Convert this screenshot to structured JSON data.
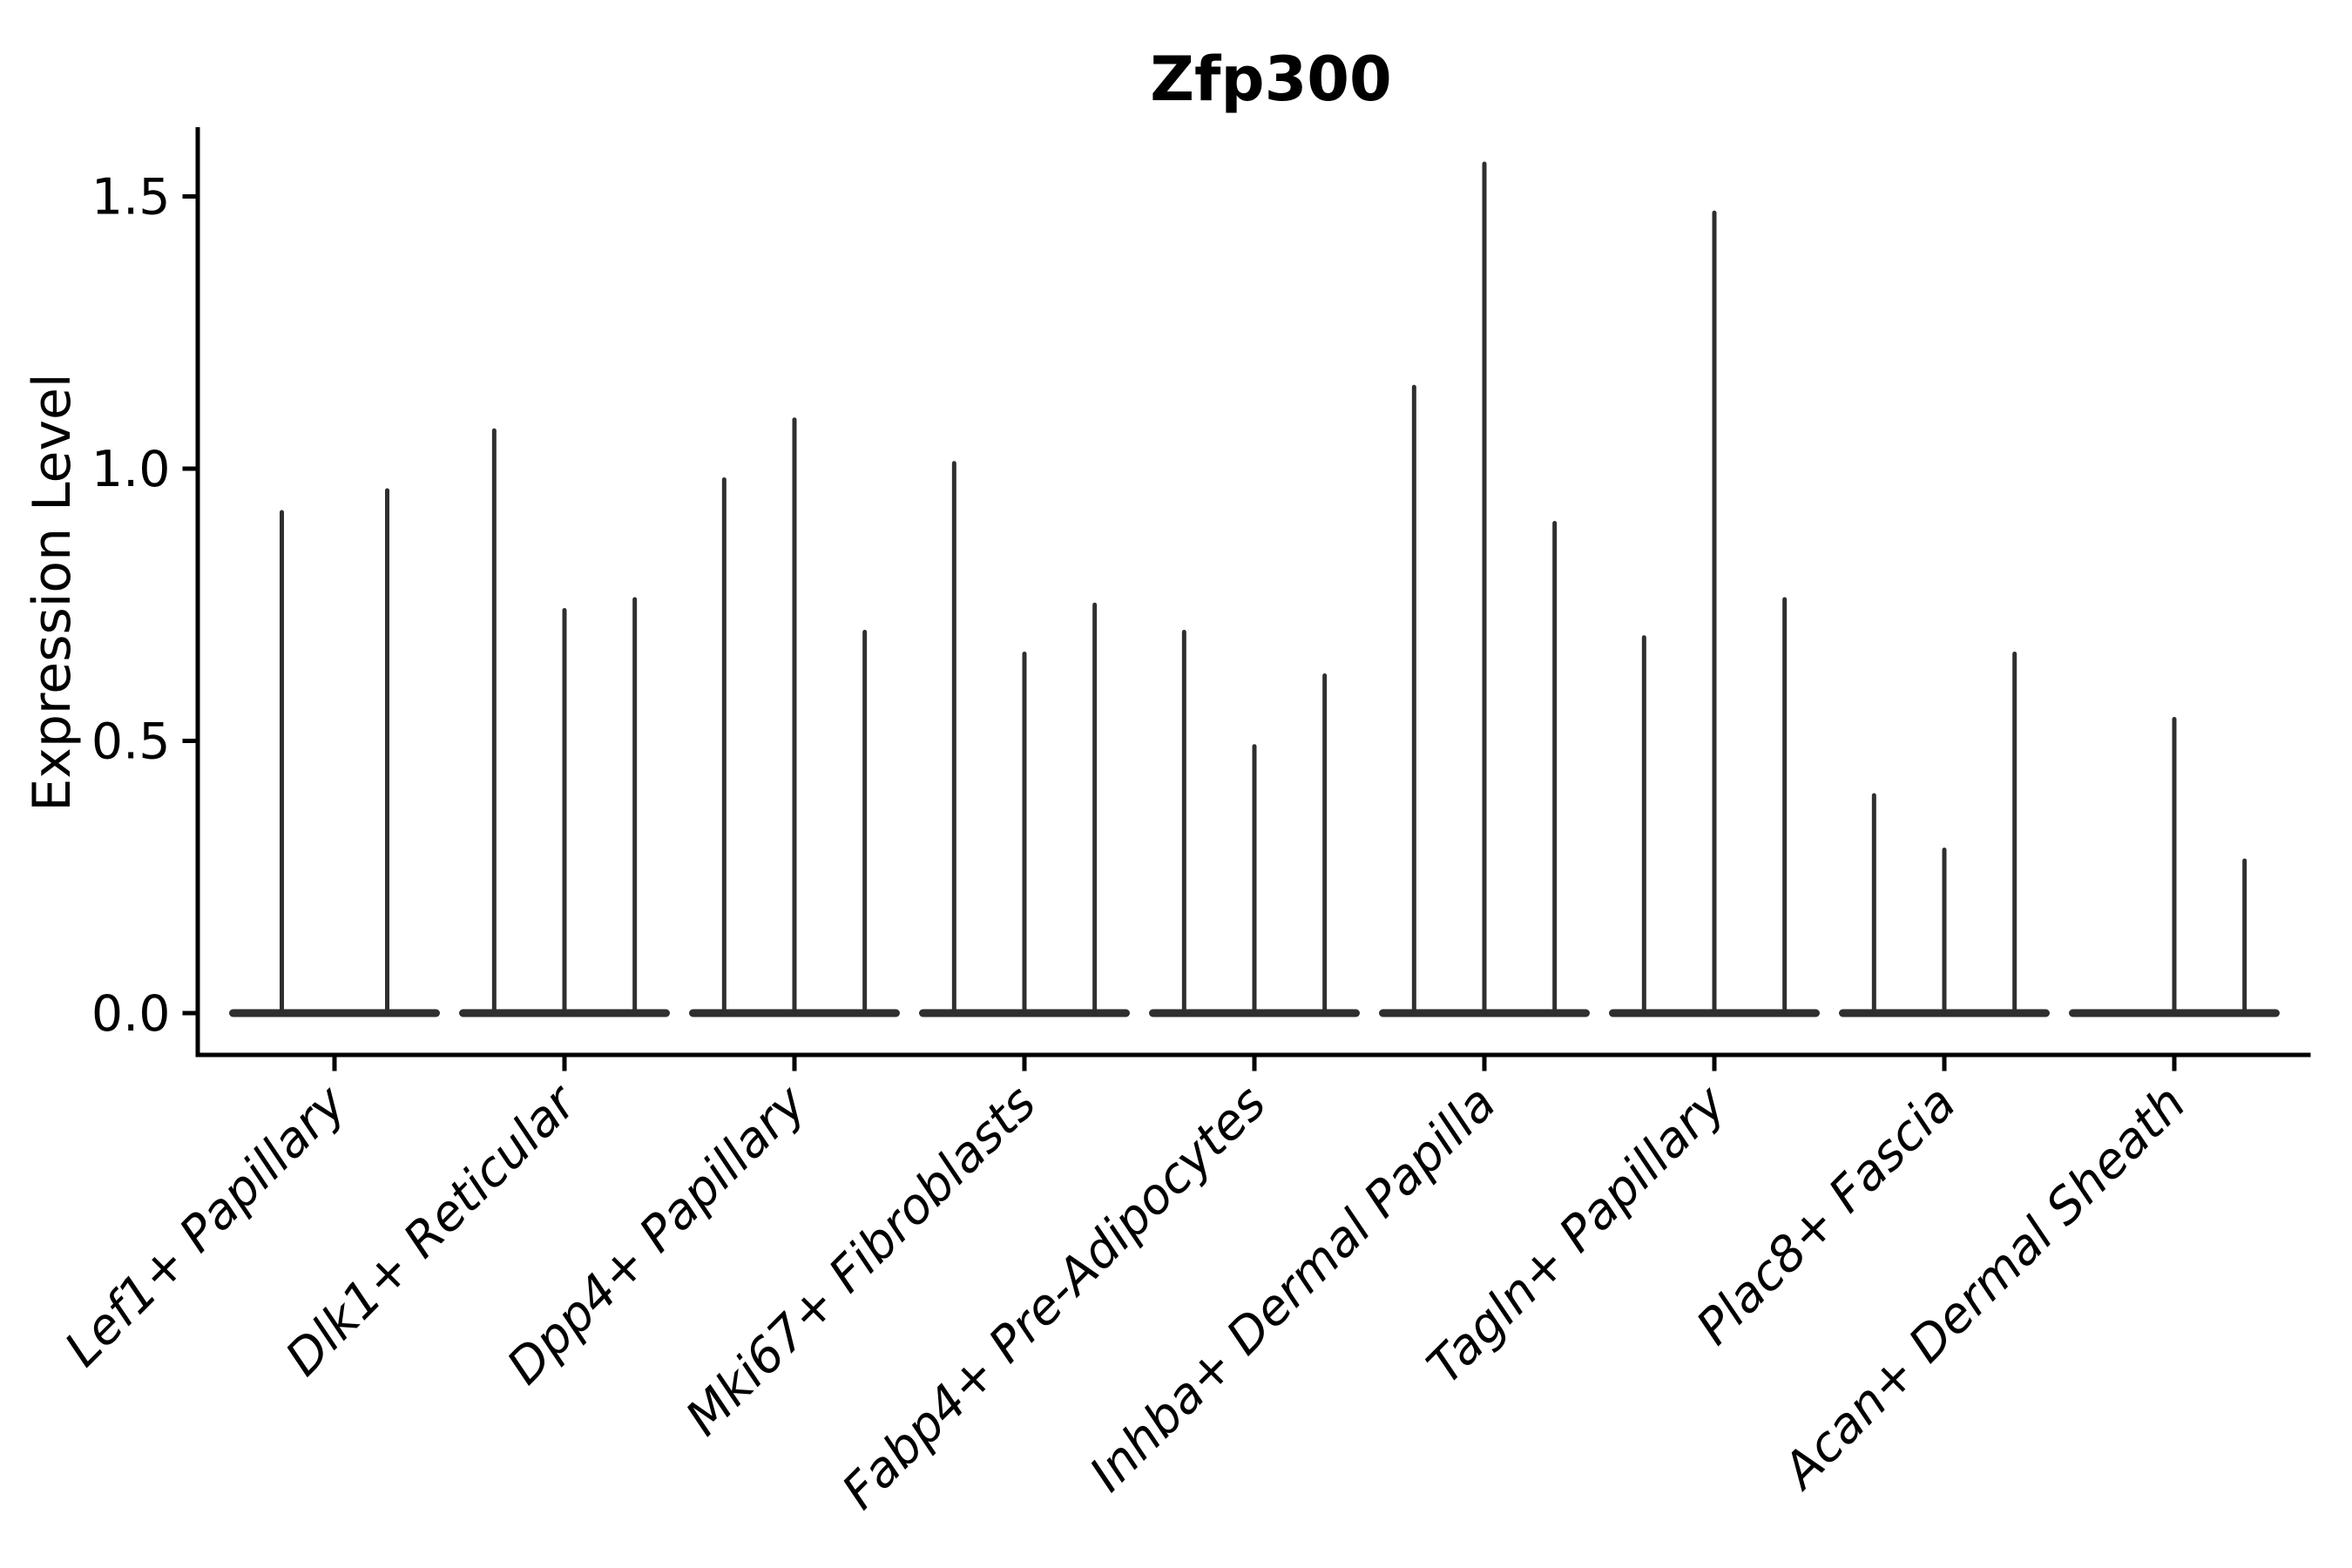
{
  "chart_data": {
    "type": "violin",
    "title": "Zfp300",
    "ylabel": "Expression Level",
    "xlabel": "",
    "background": "#ffffff",
    "text_color": "#000000",
    "violin_color": "#2f2f2f",
    "spine_color": "#000000",
    "grid": false,
    "legend": "none",
    "ytick_labels": [
      "0.0",
      "0.5",
      "1.0",
      "1.5"
    ],
    "ytick_values": [
      0.0,
      0.5,
      1.0,
      1.5
    ],
    "ylim": [
      -0.077,
      1.627
    ],
    "categories": [
      "Lef1+ Papillary",
      "Dlk1+ Reticular",
      "Dpp4+ Papillary",
      "Mki67+ Fibroblasts",
      "Fabp4+ Pre-Adipocytes",
      "Inhba+ Dermal Papilla",
      "Tagln+ Papillary",
      "Plac8+ Fascia",
      "Acan+ Dermal Sheath"
    ],
    "series_note": "Each category shows narrow violins (mass at 0 with a thin spike to the max expression value); a value of 0 means a flat violin with no spike.",
    "violin_max_values": [
      [
        0.92,
        0.96
      ],
      [
        1.07,
        0.74,
        0.76
      ],
      [
        0.98,
        1.09,
        0.7
      ],
      [
        1.01,
        0.66,
        0.75
      ],
      [
        0.7,
        0.49,
        0.62
      ],
      [
        1.15,
        1.56,
        0.9
      ],
      [
        0.69,
        1.47,
        0.76
      ],
      [
        0.4,
        0.3,
        0.66
      ],
      [
        0.0,
        0.54,
        0.28
      ]
    ]
  }
}
